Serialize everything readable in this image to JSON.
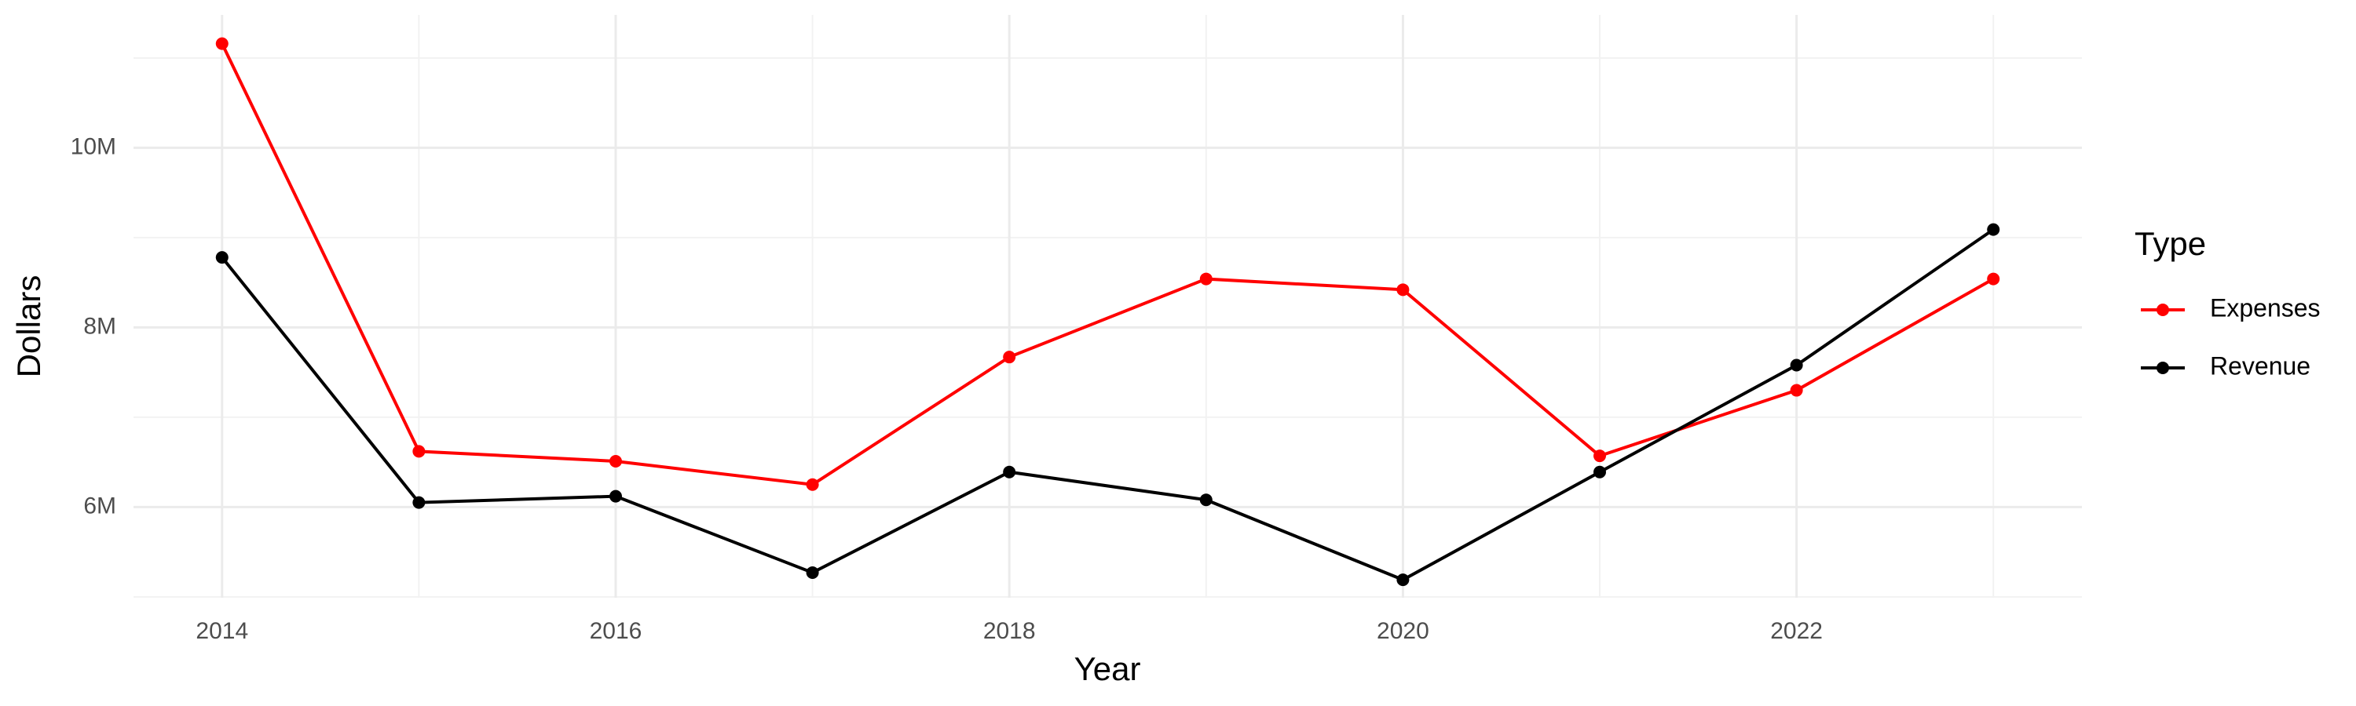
{
  "chart_data": {
    "type": "line",
    "x_label": "Year",
    "y_label": "Dollars",
    "legend_title": "Type",
    "x": [
      2014,
      2015,
      2016,
      2017,
      2018,
      2019,
      2020,
      2021,
      2022,
      2023
    ],
    "series": [
      {
        "name": "Expenses",
        "color": "#ff0000",
        "values": [
          11160000,
          6620000,
          6510000,
          6250000,
          7670000,
          8540000,
          8420000,
          6570000,
          7300000,
          8540000
        ]
      },
      {
        "name": "Revenue",
        "color": "#000000",
        "values": [
          8780000,
          6050000,
          6120000,
          5270000,
          6390000,
          6080000,
          5190000,
          6390000,
          7580000,
          9090000
        ]
      }
    ],
    "xlim": [
      2013.55,
      2023.45
    ],
    "xticks": [
      2014,
      2016,
      2018,
      2020,
      2022
    ],
    "ylim": [
      4990000,
      11480000
    ],
    "yticks": [
      {
        "value": 6000000,
        "label": "6M"
      },
      {
        "value": 8000000,
        "label": "8M"
      },
      {
        "value": 10000000,
        "label": "10M"
      }
    ],
    "grid": true,
    "legend": "right"
  }
}
